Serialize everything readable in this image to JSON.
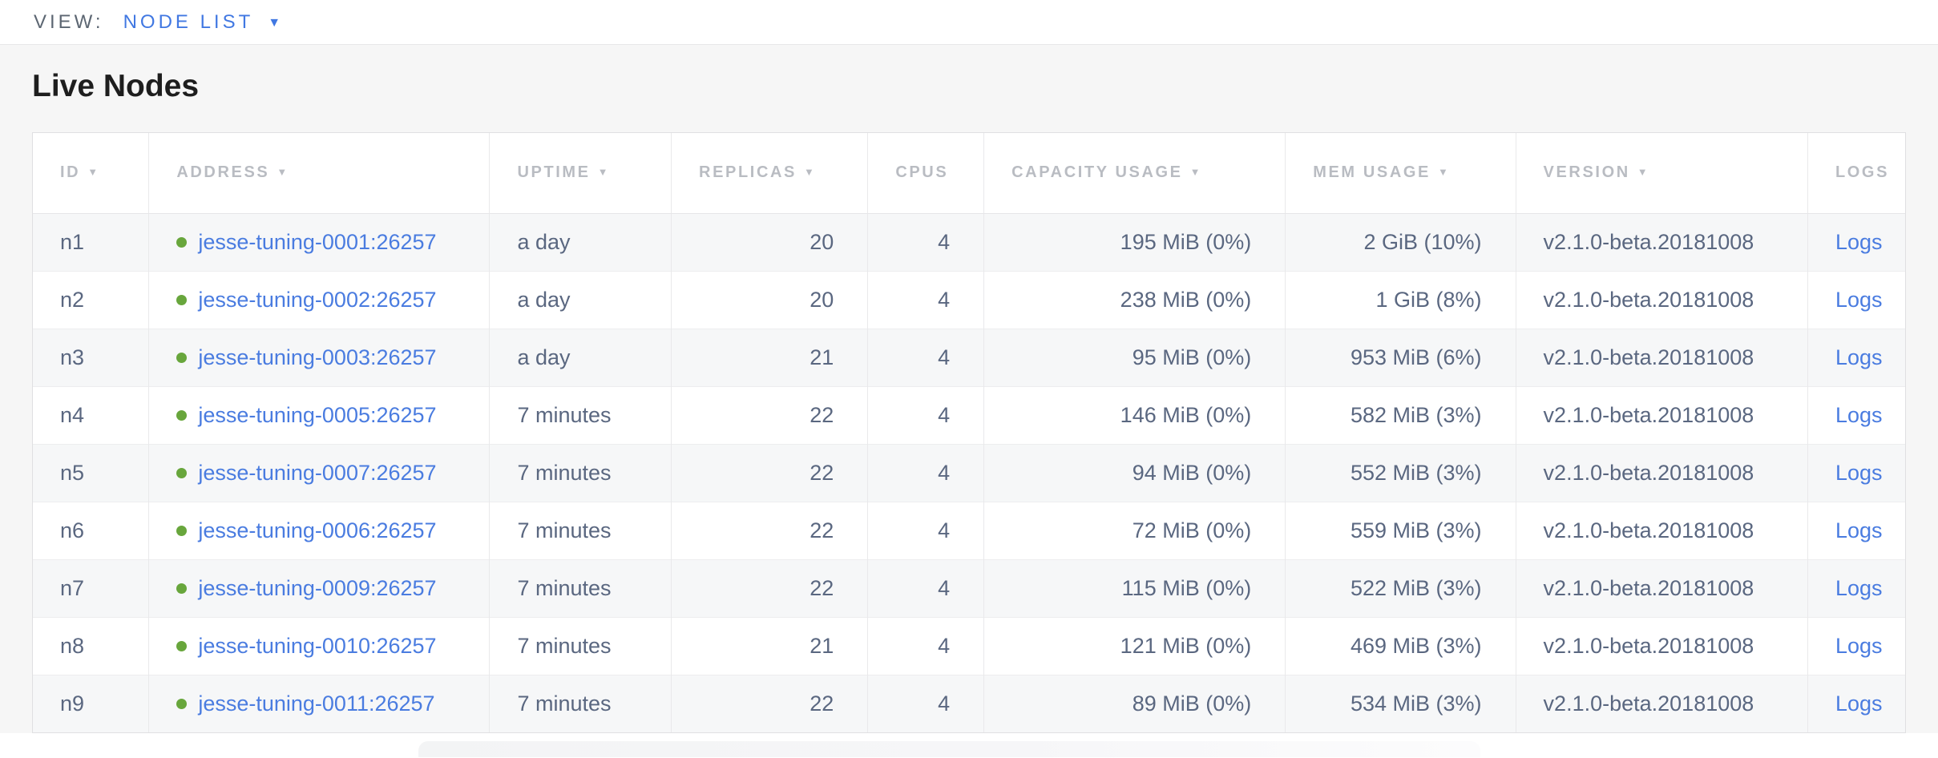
{
  "view_bar": {
    "label": "VIEW:",
    "selected": "NODE LIST",
    "caret_glyph": "▼"
  },
  "page": {
    "title": "Live Nodes"
  },
  "ui": {
    "sort_glyph": "▼"
  },
  "colors": {
    "link_blue": "#4a7ce0",
    "accent_blue": "#4178e2",
    "status_live_green": "#68a63c",
    "header_gray": "#b9bcc2",
    "cell_slate": "#5a6780"
  },
  "table": {
    "columns": [
      {
        "label": "ID",
        "field": "id",
        "sortable": true,
        "align": "left",
        "width": "6.2%"
      },
      {
        "label": "ADDRESS",
        "field": "address",
        "sortable": true,
        "align": "left",
        "width": "18.2%"
      },
      {
        "label": "UPTIME",
        "field": "uptime",
        "sortable": true,
        "align": "left",
        "width": "9.7%"
      },
      {
        "label": "REPLICAS",
        "field": "replicas",
        "sortable": true,
        "align": "right",
        "width": "10.5%"
      },
      {
        "label": "CPUS",
        "field": "cpus",
        "sortable": false,
        "align": "right",
        "width": "6.2%"
      },
      {
        "label": "CAPACITY USAGE",
        "field": "capacity_usage",
        "sortable": true,
        "align": "right",
        "width": "16.1%"
      },
      {
        "label": "MEM USAGE",
        "field": "mem_usage",
        "sortable": true,
        "align": "right",
        "width": "12.3%"
      },
      {
        "label": "VERSION",
        "field": "version",
        "sortable": true,
        "align": "left",
        "width": "15.6%"
      },
      {
        "label": "LOGS",
        "field": "logs",
        "sortable": false,
        "align": "left",
        "width": "5.2%"
      }
    ],
    "rows": [
      {
        "id": "n1",
        "status": "live",
        "address": "jesse-tuning-0001:26257",
        "uptime": "a day",
        "replicas": "20",
        "cpus": "4",
        "capacity_usage": "195 MiB (0%)",
        "mem_usage": "2 GiB (10%)",
        "version": "v2.1.0-beta.20181008",
        "logs": "Logs"
      },
      {
        "id": "n2",
        "status": "live",
        "address": "jesse-tuning-0002:26257",
        "uptime": "a day",
        "replicas": "20",
        "cpus": "4",
        "capacity_usage": "238 MiB (0%)",
        "mem_usage": "1 GiB (8%)",
        "version": "v2.1.0-beta.20181008",
        "logs": "Logs"
      },
      {
        "id": "n3",
        "status": "live",
        "address": "jesse-tuning-0003:26257",
        "uptime": "a day",
        "replicas": "21",
        "cpus": "4",
        "capacity_usage": "95 MiB (0%)",
        "mem_usage": "953 MiB (6%)",
        "version": "v2.1.0-beta.20181008",
        "logs": "Logs"
      },
      {
        "id": "n4",
        "status": "live",
        "address": "jesse-tuning-0005:26257",
        "uptime": "7 minutes",
        "replicas": "22",
        "cpus": "4",
        "capacity_usage": "146 MiB (0%)",
        "mem_usage": "582 MiB (3%)",
        "version": "v2.1.0-beta.20181008",
        "logs": "Logs"
      },
      {
        "id": "n5",
        "status": "live",
        "address": "jesse-tuning-0007:26257",
        "uptime": "7 minutes",
        "replicas": "22",
        "cpus": "4",
        "capacity_usage": "94 MiB (0%)",
        "mem_usage": "552 MiB (3%)",
        "version": "v2.1.0-beta.20181008",
        "logs": "Logs"
      },
      {
        "id": "n6",
        "status": "live",
        "address": "jesse-tuning-0006:26257",
        "uptime": "7 minutes",
        "replicas": "22",
        "cpus": "4",
        "capacity_usage": "72 MiB (0%)",
        "mem_usage": "559 MiB (3%)",
        "version": "v2.1.0-beta.20181008",
        "logs": "Logs"
      },
      {
        "id": "n7",
        "status": "live",
        "address": "jesse-tuning-0009:26257",
        "uptime": "7 minutes",
        "replicas": "22",
        "cpus": "4",
        "capacity_usage": "115 MiB (0%)",
        "mem_usage": "522 MiB (3%)",
        "version": "v2.1.0-beta.20181008",
        "logs": "Logs"
      },
      {
        "id": "n8",
        "status": "live",
        "address": "jesse-tuning-0010:26257",
        "uptime": "7 minutes",
        "replicas": "21",
        "cpus": "4",
        "capacity_usage": "121 MiB (0%)",
        "mem_usage": "469 MiB (3%)",
        "version": "v2.1.0-beta.20181008",
        "logs": "Logs"
      },
      {
        "id": "n9",
        "status": "live",
        "address": "jesse-tuning-0011:26257",
        "uptime": "7 minutes",
        "replicas": "22",
        "cpus": "4",
        "capacity_usage": "89 MiB (0%)",
        "mem_usage": "534 MiB (3%)",
        "version": "v2.1.0-beta.20181008",
        "logs": "Logs"
      }
    ]
  }
}
